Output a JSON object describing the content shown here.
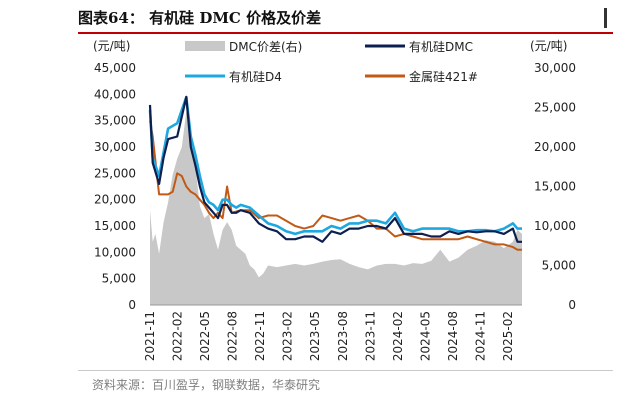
{
  "title": "图表64：  有机硅 DMC 价格及价差",
  "source": "资料来源：百川盈孚，钢联数据，华泰研究",
  "chart_data": {
    "type": "line",
    "title": "图表64：  有机硅 DMC 价格及价差",
    "left_axis": {
      "unit": "(元/吨)",
      "range": [
        0,
        45000
      ],
      "ticks": [
        "0",
        "5,000",
        "10,000",
        "15,000",
        "20,000",
        "25,000",
        "30,000",
        "35,000",
        "40,000",
        "45,000"
      ]
    },
    "right_axis": {
      "unit": "(元/吨)",
      "range": [
        0,
        30000
      ],
      "ticks": [
        "0",
        "5,000",
        "10,000",
        "15,000",
        "20,000",
        "25,000",
        "30,000"
      ]
    },
    "x_ticks": [
      "2021-11",
      "2022-02",
      "2022-05",
      "2022-08",
      "2022-11",
      "2023-02",
      "2023-05",
      "2023-08",
      "2023-11",
      "2024-02",
      "2024-05",
      "2024-08",
      "2024-11",
      "2025-02"
    ],
    "x_range": [
      0,
      41
    ],
    "legend": [
      {
        "name": "DMC价差(右)",
        "kind": "area"
      },
      {
        "name": "有机硅DMC",
        "kind": "line"
      },
      {
        "name": "有机硅D4",
        "kind": "line"
      },
      {
        "name": "金属硅421#",
        "kind": "line"
      }
    ],
    "colors": {
      "spread": "#c8c8c8",
      "dmc": "#0d1f4f",
      "d4": "#1fa8e0",
      "silicon": "#c05a14"
    },
    "series": [
      {
        "name": "DMC价差(右)",
        "axis": "right",
        "type": "area",
        "x": [
          0,
          0.3,
          0.6,
          1,
          1.5,
          2,
          2.5,
          3,
          3.5,
          4,
          4.5,
          5,
          5.5,
          6,
          6.5,
          7,
          7.5,
          8,
          8.5,
          9,
          9.5,
          10,
          10.5,
          11,
          11.5,
          12,
          12.5,
          13,
          14,
          15,
          16,
          17,
          18,
          19,
          20,
          21,
          22,
          23,
          24,
          25,
          26,
          27,
          28,
          29,
          30,
          31,
          32,
          33,
          34,
          35,
          36,
          37,
          38,
          39,
          40,
          40.5,
          41
        ],
        "values": [
          12000,
          8000,
          9000,
          6500,
          10500,
          13000,
          16500,
          18500,
          20000,
          24500,
          22500,
          17500,
          12500,
          11000,
          11500,
          9000,
          7000,
          9500,
          10500,
          9500,
          7500,
          7000,
          6500,
          5000,
          4500,
          3500,
          4000,
          5000,
          4800,
          5000,
          5200,
          5000,
          5200,
          5500,
          5700,
          5800,
          5200,
          4800,
          4500,
          5000,
          5200,
          5200,
          5000,
          5300,
          5200,
          5600,
          7000,
          5500,
          6000,
          7000,
          7500,
          8200,
          8000,
          7200,
          8000,
          9500,
          9000
        ]
      },
      {
        "name": "有机硅DMC",
        "axis": "left",
        "type": "line",
        "x": [
          0,
          0.3,
          1,
          1.5,
          2,
          3,
          4,
          4.5,
          5,
          5.5,
          6,
          6.5,
          7,
          7.5,
          8,
          8.5,
          9,
          9.5,
          10,
          11,
          12,
          13,
          14,
          15,
          16,
          17,
          18,
          19,
          20,
          21,
          22,
          23,
          24,
          25,
          26,
          27,
          28,
          29,
          30,
          31,
          32,
          33,
          34,
          35,
          36,
          37,
          38,
          39,
          40,
          40.5,
          41
        ],
        "values": [
          38000,
          27000,
          23000,
          28000,
          31500,
          32000,
          39500,
          30000,
          26500,
          22500,
          19500,
          18500,
          17500,
          16500,
          19000,
          19000,
          17500,
          17500,
          18000,
          17500,
          15500,
          14500,
          14000,
          12500,
          12500,
          13000,
          13000,
          12000,
          14000,
          13500,
          14500,
          14500,
          15000,
          15000,
          14500,
          16500,
          13500,
          13500,
          13500,
          13000,
          13000,
          14000,
          13500,
          14000,
          13800,
          14000,
          14000,
          13500,
          14500,
          12000,
          12000
        ]
      },
      {
        "name": "有机硅D4",
        "axis": "left",
        "type": "line",
        "x": [
          0,
          0.3,
          1,
          1.5,
          2,
          3,
          4,
          4.5,
          5,
          5.5,
          6,
          6.5,
          7,
          7.5,
          8,
          8.5,
          9,
          9.5,
          10,
          11,
          12,
          13,
          14,
          15,
          16,
          17,
          18,
          19,
          20,
          21,
          22,
          23,
          24,
          25,
          26,
          27,
          28,
          29,
          30,
          31,
          32,
          33,
          34,
          35,
          36,
          37,
          38,
          39,
          40,
          40.5,
          41
        ],
        "values": [
          37000,
          28000,
          24500,
          29000,
          33500,
          34500,
          39500,
          32000,
          28500,
          24500,
          21000,
          19500,
          19000,
          18000,
          20000,
          20000,
          19000,
          18500,
          19000,
          18500,
          17000,
          15500,
          15000,
          14000,
          13500,
          14000,
          14000,
          14000,
          15000,
          14500,
          15500,
          15500,
          16000,
          16000,
          15500,
          17500,
          14500,
          14000,
          14500,
          14500,
          14500,
          14500,
          14000,
          14000,
          14200,
          14200,
          14000,
          14500,
          15500,
          14500,
          14500
        ]
      },
      {
        "name": "金属硅421#",
        "axis": "left",
        "type": "line",
        "x": [
          0,
          0.3,
          1,
          1.5,
          2,
          2.5,
          3,
          3.5,
          4,
          4.5,
          5,
          5.5,
          6,
          6.5,
          7,
          7.5,
          8,
          8.5,
          9,
          10,
          11,
          12,
          13,
          14,
          15,
          16,
          17,
          18,
          19,
          20,
          21,
          22,
          23,
          24,
          25,
          26,
          27,
          28,
          29,
          30,
          31,
          32,
          33,
          34,
          35,
          36,
          37,
          38,
          39,
          40,
          40.5,
          41
        ],
        "values": [
          35000,
          32000,
          21000,
          21000,
          21000,
          21500,
          25000,
          24500,
          22500,
          21500,
          21000,
          20000,
          19000,
          17500,
          16500,
          17500,
          16500,
          22500,
          17500,
          18000,
          18000,
          16500,
          17000,
          17000,
          16000,
          15000,
          14500,
          15000,
          17000,
          16500,
          16000,
          16500,
          17000,
          16000,
          14500,
          14500,
          13000,
          13500,
          13000,
          12500,
          12500,
          12500,
          12500,
          12500,
          13000,
          12500,
          12000,
          11500,
          11500,
          11000,
          10500,
          10500
        ]
      }
    ]
  }
}
